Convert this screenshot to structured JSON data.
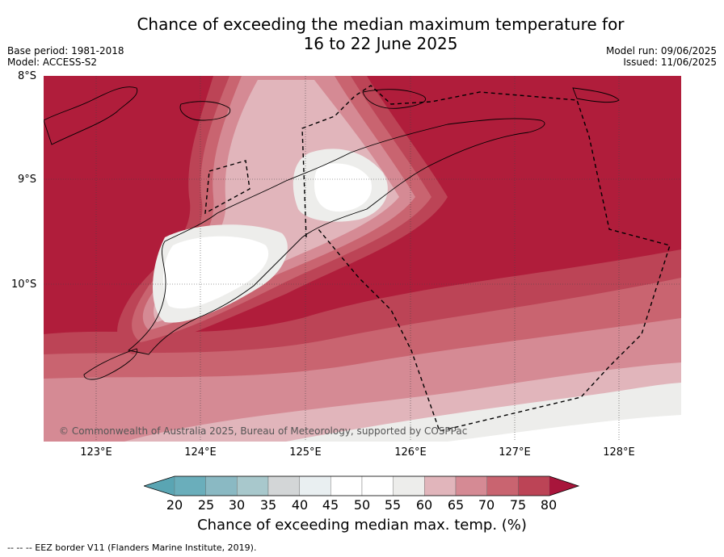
{
  "title_line1": "Chance of exceeding the median maximum temperature for",
  "title_line2": "16 to 22 June 2025",
  "base_period": "Base period: 1981-2018",
  "model": "Model: ACCESS-S2",
  "model_run": "Model run: 09/06/2025",
  "issued": "Issued: 11/06/2025",
  "lat_labels": [
    "8°S",
    "9°S",
    "10°S"
  ],
  "lon_labels": [
    "123°E",
    "124°E",
    "125°E",
    "126°E",
    "127°E",
    "128°E"
  ],
  "copyright": "© Commonwealth of Australia 2025, Bureau of Meteorology, supported by COSPPac",
  "colorbar": {
    "ticks": [
      "20",
      "25",
      "30",
      "35",
      "40",
      "45",
      "50",
      "55",
      "60",
      "65",
      "70",
      "75",
      "80"
    ],
    "colors": [
      "#5aa5b3",
      "#6aaebb",
      "#8ab9c3",
      "#a8c8cc",
      "#d3d6d7",
      "#e9eff1",
      "#ffffff",
      "#ffffff",
      "#ededeb",
      "#e1b5bb",
      "#d58a94",
      "#c96470",
      "#bc4456",
      "#a8153b"
    ],
    "label": "Chance of exceeding median max. temp. (%)"
  },
  "footnote": "--  --  -- EEZ border V11 (Flanders Marine Institute, 2019)."
}
